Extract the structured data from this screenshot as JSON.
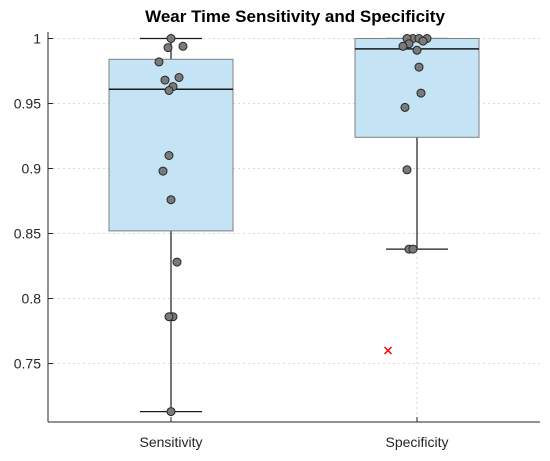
{
  "chart_data": {
    "type": "box",
    "title": "Wear Time Sensitivity and Specificity",
    "xlabel": "",
    "ylabel": "",
    "categories": [
      "Sensitivity",
      "Specificity"
    ],
    "ylim": [
      0.705,
      1.005
    ],
    "yticks": [
      0.75,
      0.8,
      0.85,
      0.9,
      0.95,
      1
    ],
    "ytick_labels": [
      "0.75",
      "0.8",
      "0.85",
      "0.9",
      "0.95",
      "1"
    ],
    "grid": "horizontal dotted",
    "boxes": [
      {
        "name": "Sensitivity",
        "q1": 0.852,
        "median": 0.961,
        "q3": 0.984,
        "whisker_low": 0.713,
        "whisker_high": 1.0,
        "outliers": [],
        "points": [
          1.0,
          0.994,
          0.993,
          0.982,
          0.97,
          0.968,
          0.963,
          0.96,
          0.91,
          0.898,
          0.876,
          0.828,
          0.786,
          0.786,
          0.713
        ]
      },
      {
        "name": "Specificity",
        "q1": 0.924,
        "median": 0.992,
        "q3": 1.0,
        "whisker_low": 0.838,
        "whisker_high": 1.0,
        "outliers": [
          0.76
        ],
        "points": [
          1.0,
          1.0,
          1.0,
          1.0,
          0.998,
          0.996,
          0.994,
          0.991,
          0.978,
          0.958,
          0.947,
          0.899,
          0.838,
          0.838
        ]
      }
    ],
    "colors": {
      "box_fill": "#c4e3f4",
      "box_edge": "#7f7f7f",
      "median": "#1a1a1a",
      "whisker": "#1a1a1a",
      "point_fill": "#7a7a7a",
      "point_edge": "#262626",
      "outlier": "#ff0000",
      "grid": "#d9d9d9",
      "axis": "#262626"
    }
  }
}
